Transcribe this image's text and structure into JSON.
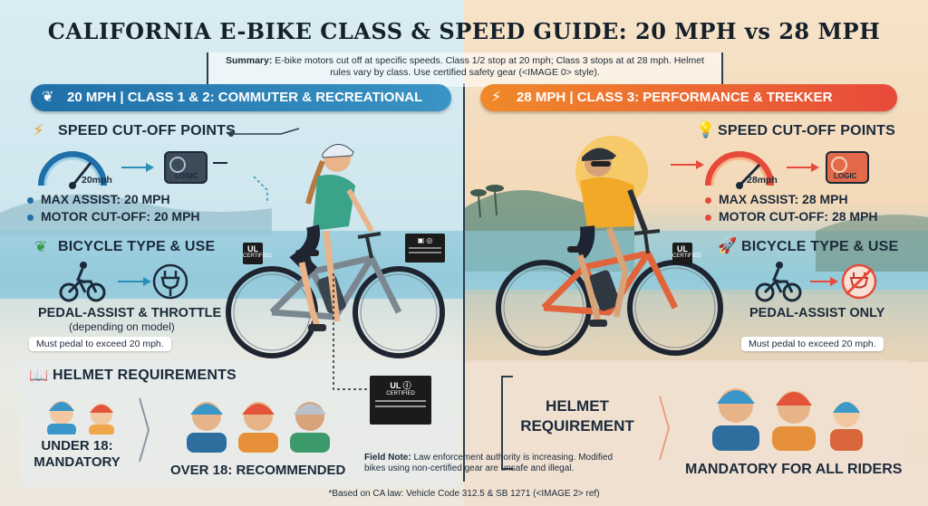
{
  "title": "CALIFORNIA E-BIKE CLASS & SPEED GUIDE: 20 MPH vs 28 MPH",
  "summary": {
    "label": "Summary:",
    "text": "E-bike motors cut off at specific speeds. Class 1/2 stop at 20 mph; Class 3 stops at at 28 mph. Helmet rules vary by class. Use certified safety gear (<IMAGE 0> style)."
  },
  "left": {
    "banner": "20 MPH | CLASS 1 & 2: COMMUTER & RECREATIONAL",
    "speed_heading": "SPEED CUT-OFF POINTS",
    "gauge_label": "20mph",
    "logic_label": "LOGIC",
    "bullets": [
      "MAX ASSIST: 20 MPH",
      "MOTOR CUT-OFF: 20 MPH"
    ],
    "type_heading": "BICYCLE TYPE & USE",
    "type_title": "PEDAL-ASSIST & THROTTLE",
    "type_sub": "(depending on model)",
    "type_note": "Must pedal to exceed 20 mph.",
    "helmet_heading": "HELMET REQUIREMENTS",
    "under18": [
      "UNDER 18:",
      "MANDATORY"
    ],
    "over18": "OVER 18: RECOMMENDED"
  },
  "right": {
    "banner": "28 MPH | CLASS 3: PERFORMANCE & TREKKER",
    "speed_heading": "SPEED CUT-OFF POINTS",
    "gauge_label": "28mph",
    "logic_label": "LOGIC",
    "bullets": [
      "MAX ASSIST: 28 MPH",
      "MOTOR CUT-OFF: 28 MPH"
    ],
    "type_heading": "BICYCLE TYPE & USE",
    "type_title": "PEDAL-ASSIST ONLY",
    "type_note": "Must pedal to exceed 20 mph.",
    "helmet_heading": [
      "HELMET",
      "REQUIREMENT"
    ],
    "all_riders": "MANDATORY FOR ALL RIDERS"
  },
  "certified_badge": "CERTIFIED",
  "field_note": {
    "label": "Field Note:",
    "text": "Law enforcement authority is increasing. Modified bikes using non-certified gear are unsafe and illegal."
  },
  "footer": "*Based on CA law: Vehicle Code 312.5 & SB 1271 (<IMAGE 2> ref)",
  "colors": {
    "left_accent": "#1f6fa8",
    "right_accent": "#e84a3a",
    "orange": "#f08a2a"
  }
}
